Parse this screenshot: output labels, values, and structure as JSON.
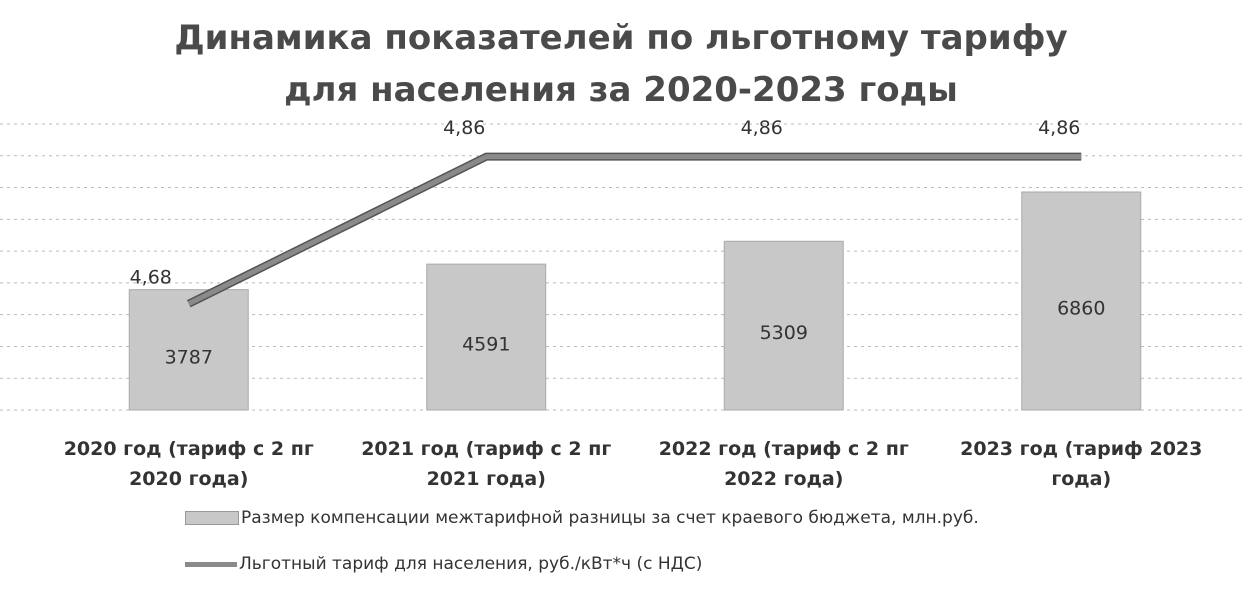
{
  "chart_data": {
    "type": "bar_line",
    "title": "Динамика показателей по льготному тарифу для населения за 2020-2023 годы",
    "categories": [
      "2020 год (тариф с 2 пг 2020 года)",
      "2021 год (тариф с 2 пг 2021 года)",
      "2022 год (тариф с 2 пг 2022 года)",
      "2023 год (тариф 2023 года)"
    ],
    "series": [
      {
        "name": "Размер компенсации межтарифной разницы за счет краевого бюджета, млн.руб.",
        "type": "bar",
        "color": "#c8c8c8",
        "values": [
          3787,
          4591,
          5309,
          6860
        ]
      },
      {
        "name": "Льготный тариф для населения, руб./кВт*ч (с НДС)",
        "type": "line",
        "axis": "y2",
        "color": "#8a8a8a",
        "values": [
          4.68,
          4.86,
          4.86,
          4.86
        ],
        "value_labels": [
          "4,68",
          "4,86",
          "4,86",
          "4,86"
        ]
      }
    ],
    "ylim": [
      0,
      9000
    ],
    "yticks": [
      0,
      1000,
      2000,
      3000,
      4000,
      5000,
      6000,
      7000,
      8000,
      9000
    ],
    "y2lim": [
      4.55,
      4.9
    ],
    "grid": true,
    "legend": "bottom"
  }
}
